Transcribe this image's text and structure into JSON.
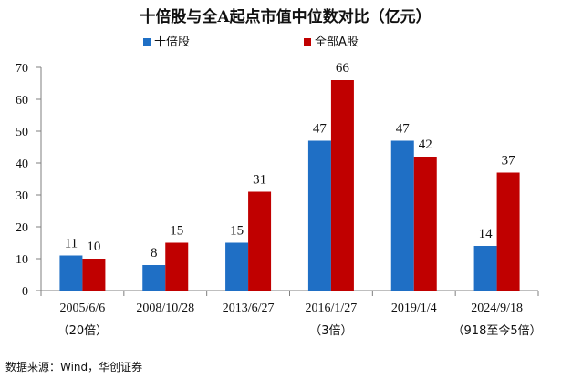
{
  "chart_data": {
    "type": "bar",
    "title": "十倍股与全A起点市值中位数对比（亿元）",
    "categories": [
      "2005/6/6",
      "2008/10/28",
      "2013/6/27",
      "2016/1/27",
      "2019/1/4",
      "2024/9/18"
    ],
    "category_notes": [
      "（20倍）",
      "",
      "",
      "（3倍）",
      "",
      "（918至今5倍）"
    ],
    "series": [
      {
        "name": "十倍股",
        "color": "#1f6fc5",
        "values": [
          11,
          8,
          15,
          47,
          47,
          14
        ]
      },
      {
        "name": "全部A股",
        "color": "#c00000",
        "values": [
          10,
          15,
          31,
          66,
          42,
          37
        ]
      }
    ],
    "ylim": [
      0,
      70
    ],
    "yticks": [
      0,
      10,
      20,
      30,
      40,
      50,
      60,
      70
    ],
    "grid": false,
    "legend_position": "top-center"
  },
  "source": "数据来源：Wind，华创证券"
}
